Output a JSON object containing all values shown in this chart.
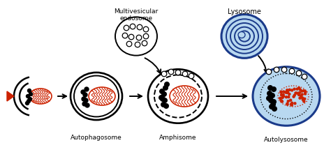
{
  "bg_color": "#ffffff",
  "text_color": "#000000",
  "red_color": "#cc2200",
  "blue_light": "#b8d8f0",
  "blue_dark": "#1a3a8a",
  "blue_mid": "#4a6aaa",
  "labels": {
    "multivesicular": "Multivesicular\nendosome",
    "lysosome": "Lysosome",
    "autophagosome": "Autophagosome",
    "amphisome": "Amphisome",
    "autolysosome": "Autolysosome"
  },
  "label_fontsize": 6.5
}
